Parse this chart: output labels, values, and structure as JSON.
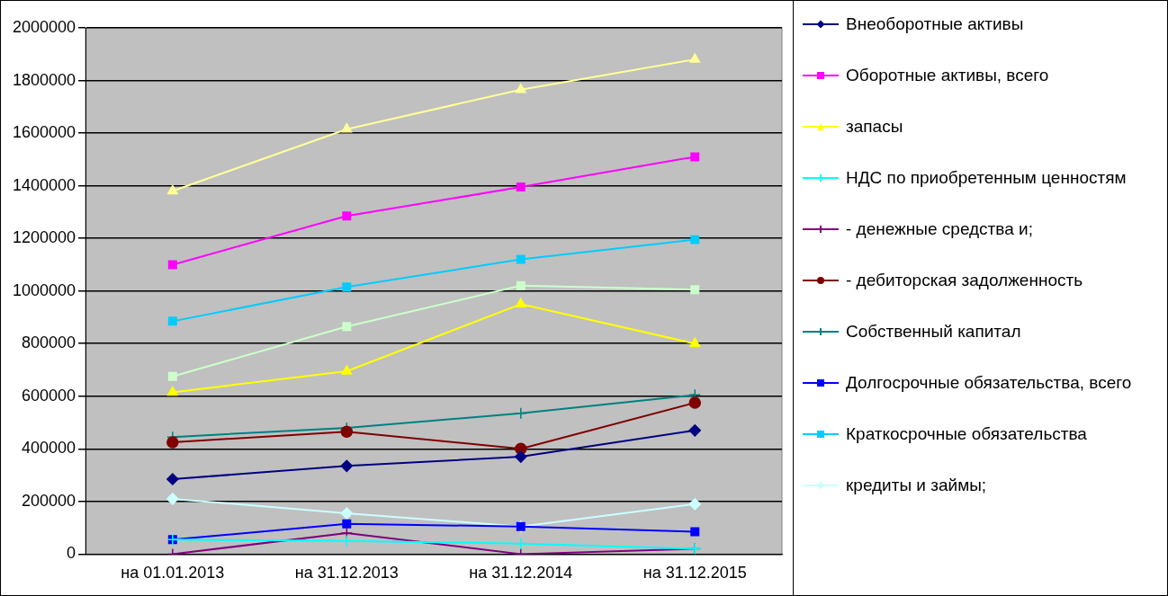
{
  "chart_data": {
    "type": "line",
    "categories": [
      "на 01.01.2013",
      "на 31.12.2013",
      "на 31.12.2014",
      "на 31.12.2015"
    ],
    "ylim": [
      0,
      2000000
    ],
    "yticks": [
      0,
      200000,
      400000,
      600000,
      800000,
      1000000,
      1200000,
      1400000,
      1600000,
      1800000,
      2000000
    ],
    "grid": "y",
    "legend": "right",
    "line_style": "solid",
    "series": [
      {
        "name": "Внеоборотные активы",
        "color": "#000080",
        "marker": "diamond",
        "values": [
          285000,
          335000,
          370000,
          470000
        ]
      },
      {
        "name": "Оборотные активы, всего",
        "color": "#ff00ff",
        "marker": "square",
        "values": [
          1100000,
          1285000,
          1395000,
          1510000
        ]
      },
      {
        "name": "запасы",
        "color": "#ffff00",
        "marker": "triangle",
        "values": [
          615000,
          695000,
          950000,
          800000
        ]
      },
      {
        "name": "НДС по приобретенным ценностям",
        "color": "#00ffff",
        "marker": "cross",
        "values": [
          55000,
          50000,
          40000,
          20000
        ]
      },
      {
        "name": "- денежные средства и;",
        "color": "#800080",
        "marker": "cross",
        "values": [
          0,
          80000,
          0,
          20000
        ]
      },
      {
        "name": "- дебиторская задолженность",
        "color": "#800000",
        "marker": "circle",
        "values": [
          425000,
          465000,
          400000,
          575000
        ]
      },
      {
        "name": "Собственный капитал",
        "color": "#008080",
        "marker": "cross",
        "values": [
          445000,
          480000,
          535000,
          605000
        ]
      },
      {
        "name": "Долгосрочные обязательства, всего",
        "color": "#0000ff",
        "marker": "square",
        "values": [
          55000,
          115000,
          105000,
          85000
        ]
      },
      {
        "name": "Краткосрочные обязательства",
        "color": "#00ccff",
        "marker": "square",
        "values": [
          885000,
          1015000,
          1120000,
          1195000
        ]
      },
      {
        "name": "кредиты и займы;",
        "color": "#ccffff",
        "marker": "diamond",
        "values": [
          210000,
          155000,
          105000,
          190000
        ]
      },
      {
        "color": "#ccffcc",
        "marker": "square",
        "values": [
          675000,
          865000,
          1020000,
          1005000
        ]
      },
      {
        "color": "#ffff99",
        "marker": "triangle",
        "values": [
          1380000,
          1615000,
          1765000,
          1880000
        ]
      }
    ]
  }
}
